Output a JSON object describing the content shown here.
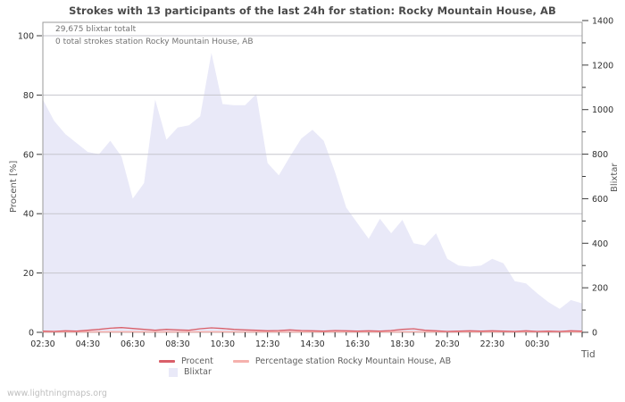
{
  "title": "Strokes with 13 participants of the last 24h for station: Rocky Mountain House, AB",
  "watermark": "www.lightningmaps.org",
  "annotations": {
    "line1": "29,675 blixtar totalt",
    "line2": "0 total strokes station Rocky Mountain House, AB"
  },
  "legend": {
    "procent": "Procent",
    "station": "Percentage station Rocky Mountain House, AB",
    "blixtar": "Blixtar"
  },
  "colors": {
    "procent_line": "#d95f69",
    "station_line": "#f5b1ad",
    "area_fill": "#e9e9f8",
    "grid_line": "#c6c6cd",
    "axis_box": "#9a9a9a",
    "tick_text": "#2f2f2f"
  },
  "chart_data": {
    "type": "area",
    "title": "Strokes with 13 participants of the last 24h for station: Rocky Mountain House, AB",
    "xlabel": "Tid",
    "ylabel_left": "Procent  [%]",
    "ylabel_right": "Blixtar",
    "left_axis_ticks": [
      0,
      20,
      40,
      60,
      80,
      100
    ],
    "left_axis_range": [
      0,
      100
    ],
    "right_axis_ticks": [
      0,
      200,
      400,
      600,
      800,
      1000,
      1200,
      1400
    ],
    "right_axis_minor_ticks": [
      100,
      300,
      500,
      700,
      900,
      1100,
      1300
    ],
    "right_axis_range": [
      0,
      1400
    ],
    "x_tick_labels": [
      "02:30",
      "04:30",
      "06:30",
      "08:30",
      "10:30",
      "12:30",
      "14:30",
      "16:30",
      "18:30",
      "20:30",
      "22:30",
      "00:30"
    ],
    "grid": "horizontal",
    "legend_position": "bottom",
    "x_times": [
      "02:30",
      "03:00",
      "03:30",
      "04:00",
      "04:30",
      "05:00",
      "05:30",
      "06:00",
      "06:30",
      "07:00",
      "07:30",
      "08:00",
      "08:30",
      "09:00",
      "09:30",
      "10:00",
      "10:30",
      "11:00",
      "11:30",
      "12:00",
      "12:30",
      "13:00",
      "13:30",
      "14:00",
      "14:30",
      "15:00",
      "15:30",
      "16:00",
      "16:30",
      "17:00",
      "17:30",
      "18:00",
      "18:30",
      "19:00",
      "19:30",
      "20:00",
      "20:30",
      "21:00",
      "21:30",
      "22:00",
      "22:30",
      "23:00",
      "23:30",
      "00:00",
      "00:30",
      "01:00",
      "01:30",
      "02:00",
      "02:30"
    ],
    "series": [
      {
        "name": "Blixtar",
        "type": "area",
        "axis": "right",
        "values": [
          1045,
          950,
          890,
          850,
          810,
          800,
          860,
          790,
          600,
          670,
          1045,
          865,
          920,
          930,
          970,
          1255,
          1025,
          1020,
          1020,
          1070,
          760,
          705,
          790,
          870,
          910,
          860,
          720,
          560,
          490,
          420,
          510,
          445,
          505,
          400,
          390,
          445,
          330,
          300,
          295,
          300,
          330,
          310,
          230,
          220,
          175,
          135,
          105,
          145,
          130
        ]
      },
      {
        "name": "Procent",
        "type": "line",
        "axis": "left",
        "values": [
          0.4,
          0.3,
          0.5,
          0.4,
          0.7,
          1.0,
          1.4,
          1.6,
          1.3,
          1.0,
          0.7,
          1.0,
          0.8,
          0.7,
          1.2,
          1.5,
          1.3,
          1.0,
          0.8,
          0.7,
          0.5,
          0.6,
          0.8,
          0.6,
          0.5,
          0.4,
          0.6,
          0.5,
          0.4,
          0.5,
          0.4,
          0.6,
          1.0,
          1.2,
          0.7,
          0.5,
          0.3,
          0.4,
          0.5,
          0.4,
          0.5,
          0.4,
          0.3,
          0.5,
          0.3,
          0.4,
          0.3,
          0.5,
          0.4
        ]
      },
      {
        "name": "Percentage station Rocky Mountain House, AB",
        "type": "line",
        "axis": "left",
        "values": [
          0,
          0,
          0,
          0,
          0,
          0,
          0,
          0,
          0,
          0,
          0,
          0,
          0,
          0,
          0,
          0,
          0,
          0,
          0,
          0,
          0,
          0,
          0,
          0,
          0,
          0,
          0,
          0,
          0,
          0,
          0,
          0,
          0,
          0,
          0,
          0,
          0,
          0,
          0,
          0,
          0,
          0,
          0,
          0,
          0,
          0,
          0,
          0,
          0
        ]
      }
    ],
    "totals": {
      "blixtar_total": "29,675",
      "station_total": 0
    }
  }
}
